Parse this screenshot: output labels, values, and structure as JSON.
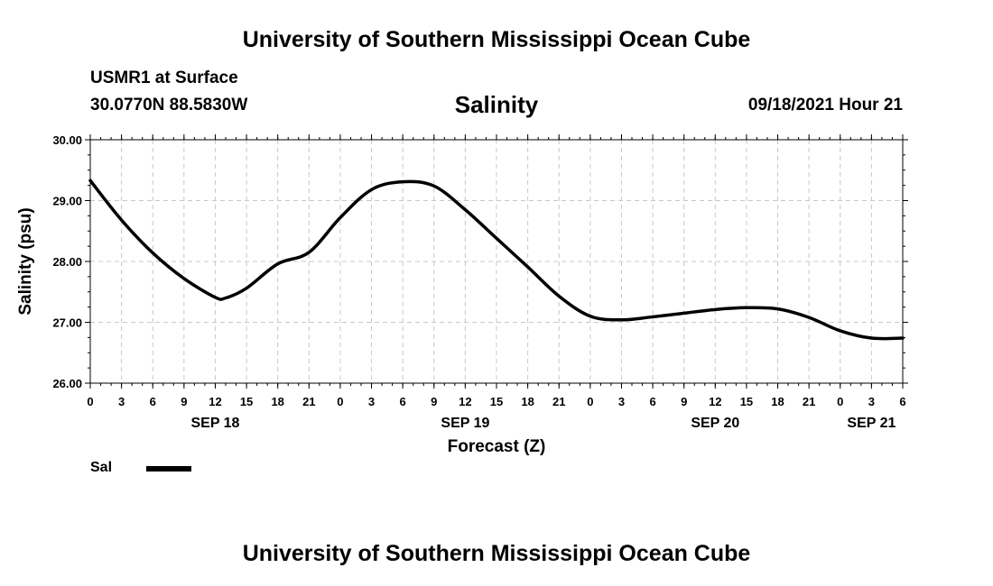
{
  "header": {
    "title_top": "University of Southern Mississippi Ocean Cube",
    "station": "USMR1 at Surface",
    "coords": "30.0770N  88.5830W",
    "parameter": "Salinity",
    "datetime": "09/18/2021 Hour 21",
    "title_bottom": "University of Southern Mississippi Ocean Cube"
  },
  "legend": {
    "label": "Sal",
    "color": "#000000"
  },
  "chart_data": {
    "type": "line",
    "title": "Salinity",
    "xlabel": "Forecast (Z)",
    "ylabel": "Salinity (psu)",
    "ylim": [
      26.0,
      30.0
    ],
    "yticks": [
      "26.00",
      "27.00",
      "28.00",
      "29.00",
      "30.00"
    ],
    "xlim": [
      0,
      78
    ],
    "xtick_step": 3,
    "xtick_labels": [
      "0",
      "3",
      "6",
      "9",
      "12",
      "15",
      "18",
      "21",
      "0",
      "3",
      "6",
      "9",
      "12",
      "15",
      "18",
      "21",
      "0",
      "3",
      "6",
      "9",
      "12",
      "15",
      "18",
      "21",
      "0",
      "3",
      "6"
    ],
    "date_labels": [
      {
        "text": "SEP 18",
        "hour": 12
      },
      {
        "text": "SEP 19",
        "hour": 36
      },
      {
        "text": "SEP 20",
        "hour": 60
      },
      {
        "text": "SEP 21",
        "hour": 75
      }
    ],
    "grid": true,
    "series": [
      {
        "name": "Sal",
        "color": "#000000",
        "x": [
          0,
          3,
          6,
          9,
          12,
          13,
          15,
          18,
          21,
          24,
          27,
          30,
          33,
          36,
          39,
          42,
          45,
          48,
          51,
          54,
          57,
          60,
          63,
          66,
          69,
          72,
          75,
          78
        ],
        "values": [
          29.33,
          28.68,
          28.14,
          27.72,
          27.41,
          27.4,
          27.56,
          27.96,
          28.15,
          28.72,
          29.18,
          29.31,
          29.24,
          28.85,
          28.38,
          27.91,
          27.43,
          27.1,
          27.04,
          27.09,
          27.15,
          27.21,
          27.24,
          27.22,
          27.08,
          26.86,
          26.74,
          26.74
        ]
      }
    ]
  }
}
